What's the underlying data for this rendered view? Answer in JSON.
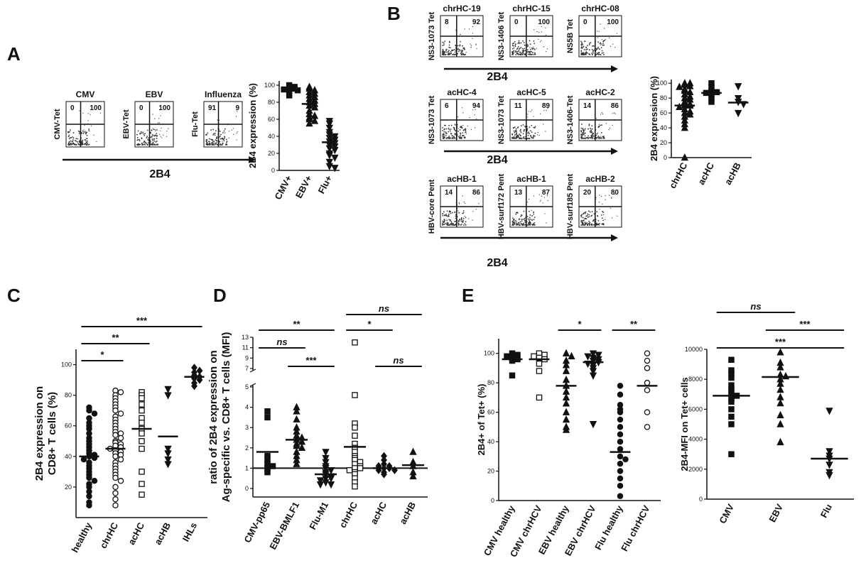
{
  "panel_labels": [
    "A",
    "B",
    "C",
    "D",
    "E"
  ],
  "chart_data": [
    {
      "type": "flow",
      "xlabel": "2B4",
      "plots": [
        {
          "title": "CMV",
          "ylabel": "CMV-Tet",
          "quadrants": [
            0,
            100
          ]
        },
        {
          "title": "EBV",
          "ylabel": "EBV-Tet",
          "quadrants": [
            0,
            100
          ]
        },
        {
          "title": "Influenza",
          "ylabel": "Flu-Tet",
          "quadrants": [
            91,
            9
          ]
        }
      ]
    },
    {
      "type": "dot",
      "ylabel": "2B4 expression (%)",
      "categories": [
        "CMV+",
        "EBV+",
        "Flu+"
      ],
      "markers": [
        "square",
        "triangle",
        "down-triangle"
      ],
      "values": [
        [
          100,
          98,
          97,
          96,
          95,
          94,
          92,
          88
        ],
        [
          98,
          96,
          94,
          92,
          90,
          88,
          86,
          84,
          82,
          80,
          78,
          76,
          74,
          70,
          66,
          62,
          60,
          58,
          55,
          64
        ],
        [
          58,
          55,
          50,
          45,
          42,
          40,
          38,
          36,
          34,
          32,
          30,
          28,
          26,
          24,
          20,
          18,
          15,
          10,
          5,
          3
        ]
      ],
      "medians": [
        96,
        78,
        33
      ],
      "ylim": [
        0,
        105
      ],
      "yticks": [
        0,
        20,
        40,
        60,
        80,
        100
      ]
    },
    {
      "type": "flow",
      "xlabel": "2B4",
      "plots": [
        {
          "title": "chrHC-19",
          "ylabel": "NS3-1073 Tet",
          "quadrants": [
            8,
            92
          ]
        },
        {
          "title": "chrHC-15",
          "ylabel": "NS3-1406 Tet",
          "quadrants": [
            0,
            100
          ]
        },
        {
          "title": "chrHC-08",
          "ylabel": "NS5B Tet",
          "quadrants": [
            0,
            100
          ]
        }
      ]
    },
    {
      "type": "flow",
      "xlabel": "2B4",
      "plots": [
        {
          "title": "acHC-4",
          "ylabel": "NS3-1073 Tet",
          "quadrants": [
            6,
            94
          ]
        },
        {
          "title": "acHC-5",
          "ylabel": "NS3-1073 Tet",
          "quadrants": [
            11,
            89
          ]
        },
        {
          "title": "acHC-2",
          "ylabel": "NS3-1406-Tet",
          "quadrants": [
            14,
            86
          ]
        }
      ]
    },
    {
      "type": "flow",
      "xlabel": "2B4",
      "plots": [
        {
          "title": "acHB-1",
          "ylabel": "HBV-core Pent",
          "quadrants": [
            14,
            86
          ]
        },
        {
          "title": "acHB-1",
          "ylabel": "HBV-surf172 Pent",
          "quadrants": [
            13,
            87
          ]
        },
        {
          "title": "acHB-2",
          "ylabel": "HBV-surf185 Pent",
          "quadrants": [
            20,
            80
          ]
        }
      ]
    },
    {
      "type": "dot",
      "ylabel": "2B4 expression (%)",
      "categories": [
        "chrHC",
        "acHC",
        "acHB"
      ],
      "markers": [
        "triangle",
        "square",
        "down-triangle"
      ],
      "values": [
        [
          100,
          100,
          98,
          96,
          95,
          92,
          90,
          88,
          85,
          82,
          80,
          78,
          75,
          72,
          70,
          70,
          68,
          65,
          62,
          60,
          58,
          55,
          50,
          45,
          40,
          0
        ],
        [
          100,
          95,
          90,
          88,
          87,
          85,
          80,
          75
        ],
        [
          96,
          80,
          75,
          72,
          60
        ]
      ],
      "medians": [
        70,
        87,
        74
      ],
      "ylim": [
        0,
        105
      ],
      "yticks": [
        0,
        20,
        40,
        60,
        80,
        100
      ]
    },
    {
      "type": "dot",
      "ylabel": [
        "2B4 expression on",
        "CD8+ T cells (%)"
      ],
      "categories": [
        "healthy",
        "chrHC",
        "acHC",
        "acHB",
        "IHLs"
      ],
      "markers": [
        "circle",
        "open-circle",
        "open-square",
        "down-triangle",
        "diamond"
      ],
      "values": [
        [
          72,
          70,
          68,
          65,
          62,
          60,
          58,
          55,
          52,
          50,
          48,
          46,
          44,
          42,
          41,
          40,
          39,
          38,
          36,
          34,
          32,
          30,
          28,
          26,
          24,
          22,
          20,
          17,
          14,
          10,
          8
        ],
        [
          83,
          82,
          80,
          78,
          76,
          74,
          72,
          70,
          68,
          66,
          64,
          62,
          60,
          58,
          56,
          55,
          54,
          52,
          50,
          49,
          48,
          47,
          46,
          45,
          44,
          43,
          42,
          41,
          40,
          38,
          36,
          34,
          32,
          30,
          28,
          26,
          24,
          20,
          16,
          12,
          8
        ],
        [
          82,
          80,
          78,
          74,
          70,
          65,
          62,
          58,
          55,
          50,
          45,
          30,
          22,
          15
        ],
        [
          84,
          80,
          45,
          42,
          38,
          35
        ],
        [
          98,
          96,
          95,
          93,
          92,
          91,
          90,
          88,
          86
        ]
      ],
      "medians": [
        40,
        45,
        58,
        53,
        92
      ],
      "ylim": [
        0,
        110
      ],
      "yticks": [
        20,
        40,
        60,
        80,
        100
      ],
      "comparisons": [
        {
          "pair": [
            "healthy",
            "chrHC"
          ],
          "label": "*"
        },
        {
          "pair": [
            "healthy",
            "acHC"
          ],
          "label": "**"
        },
        {
          "pair": [
            "healthy",
            "IHLs"
          ],
          "label": "***"
        }
      ]
    },
    {
      "type": "dot",
      "ylabel": [
        "ratio of 2B4 expression on",
        "Ag-specific vs. CD8+ T cells (MFI)"
      ],
      "categories": [
        "CMV-pp65",
        "EBV-BMLF1",
        "Flu-M1",
        "chrHC",
        "acHC",
        "acHB"
      ],
      "markers": [
        "square",
        "triangle",
        "down-triangle",
        "open-square",
        "diamond",
        "triangle"
      ],
      "values": [
        [
          3.8,
          3.5,
          1.6,
          1.4,
          1.2,
          1.1,
          1.0,
          0.8
        ],
        [
          4.0,
          3.8,
          3.4,
          3.0,
          2.8,
          2.6,
          2.5,
          2.4,
          2.3,
          2.2,
          2.1,
          2.0,
          1.8,
          1.6,
          1.4,
          1.2
        ],
        [
          1.8,
          1.5,
          1.3,
          1.1,
          1.0,
          0.9,
          0.8,
          0.7,
          0.6,
          0.5,
          0.5,
          0.4,
          0.3,
          0.2,
          0.2
        ],
        [
          12,
          4.6,
          3.2,
          3.0,
          2.6,
          2.2,
          2.0,
          1.8,
          1.6,
          1.5,
          1.4,
          1.3,
          1.2,
          1.1,
          1.0,
          1.0,
          0.9,
          0.8,
          0.7,
          0.5,
          0.3,
          0.1
        ],
        [
          1.6,
          1.4,
          1.2,
          1.1,
          1.1,
          1.0,
          1.0,
          0.9,
          0.9,
          0.8,
          0.7
        ],
        [
          1.8,
          1.3,
          1.1,
          0.8,
          0.6
        ]
      ],
      "medians": [
        1.8,
        2.4,
        0.7,
        2.05,
        1.0,
        1.15
      ],
      "ylim": [
        0,
        13
      ],
      "ybreak": [
        5,
        7
      ],
      "yticks": [
        0,
        1,
        2,
        3,
        4,
        5,
        7,
        9,
        11,
        13
      ],
      "refline": 1,
      "comparisons": [
        {
          "pair": [
            "CMV-pp65",
            "Flu-M1"
          ],
          "label": "**"
        },
        {
          "pair": [
            "CMV-pp65",
            "EBV-BMLF1"
          ],
          "label": "ns"
        },
        {
          "pair": [
            "EBV-BMLF1",
            "Flu-M1"
          ],
          "label": "***"
        },
        {
          "pair": [
            "chrHC",
            "acHB"
          ],
          "label": "ns"
        },
        {
          "pair": [
            "chrHC",
            "acHC"
          ],
          "label": "*"
        },
        {
          "pair": [
            "acHC",
            "acHB"
          ],
          "label": "ns"
        }
      ]
    },
    {
      "type": "dot",
      "ylabel": "2B4+ of Tet+ (%)",
      "categories": [
        "CMV healthy",
        "CMV chrHCV",
        "EBV healthy",
        "EBV chrHCV",
        "Flu healthy",
        "Flu chrHCV"
      ],
      "markers": [
        "square",
        "open-square",
        "triangle",
        "down-triangle",
        "circle",
        "open-circle"
      ],
      "values": [
        [
          100,
          99,
          98,
          97,
          96,
          95,
          85
        ],
        [
          100,
          99,
          98,
          97,
          96,
          93,
          88,
          70
        ],
        [
          100,
          98,
          95,
          92,
          88,
          82,
          78,
          74,
          70,
          66,
          60,
          55,
          50,
          48
        ],
        [
          100,
          99,
          98,
          97,
          96,
          95,
          94,
          93,
          92,
          90,
          88,
          85,
          52
        ],
        [
          78,
          72,
          65,
          62,
          60,
          55,
          50,
          45,
          40,
          35,
          30,
          28,
          25,
          20,
          15,
          10,
          3
        ],
        [
          100,
          95,
          90,
          80,
          75,
          60,
          50
        ]
      ],
      "medians": [
        96,
        96,
        78,
        94,
        33,
        78
      ],
      "ylim": [
        0,
        110
      ],
      "yticks": [
        0,
        20,
        40,
        60,
        80,
        100
      ],
      "comparisons": [
        {
          "pair": [
            "EBV healthy",
            "EBV chrHCV"
          ],
          "label": "*"
        },
        {
          "pair": [
            "Flu healthy",
            "Flu chrHCV"
          ],
          "label": "**"
        }
      ]
    },
    {
      "type": "dot",
      "ylabel": "2B4-MFI on Tet+ cells",
      "categories": [
        "CMV",
        "EBV",
        "Flu"
      ],
      "markers": [
        "square",
        "triangle",
        "down-triangle"
      ],
      "values": [
        [
          9300,
          8600,
          8400,
          8100,
          7600,
          7300,
          7100,
          6900,
          6700,
          6500,
          6000,
          5500,
          5000,
          3000
        ],
        [
          9800,
          9100,
          8800,
          8300,
          8200,
          8000,
          7700,
          7300,
          6800,
          6400,
          5600,
          5000,
          3800
        ],
        [
          5900,
          3200,
          2900,
          2700,
          2300,
          1800,
          1600
        ]
      ],
      "medians": [
        6900,
        8150,
        2700
      ],
      "ylim": [
        0,
        10000
      ],
      "yticks": [
        0,
        2000,
        4000,
        6000,
        8000,
        10000
      ],
      "comparisons": [
        {
          "pair": [
            "CMV",
            "EBV"
          ],
          "label": "ns"
        },
        {
          "pair": [
            "EBV",
            "Flu"
          ],
          "label": "***"
        },
        {
          "pair": [
            "CMV",
            "Flu"
          ],
          "label": "***"
        }
      ]
    }
  ]
}
